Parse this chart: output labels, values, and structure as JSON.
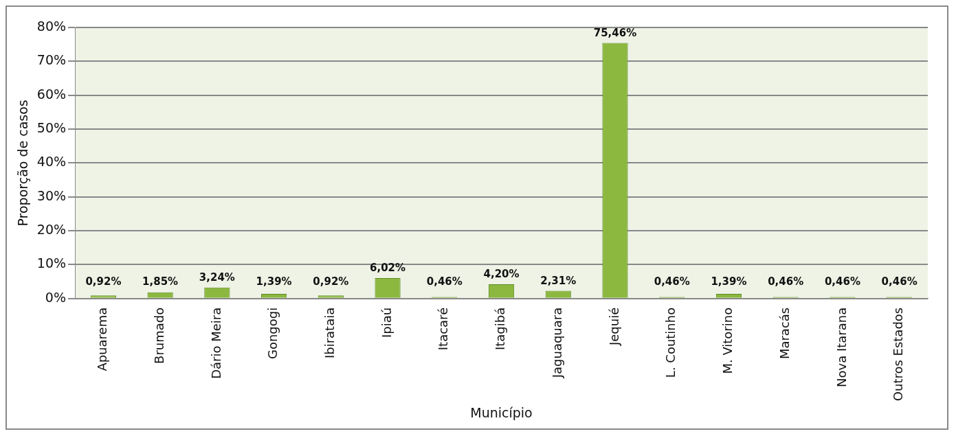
{
  "chart_data": {
    "type": "bar",
    "xlabel": "Município",
    "ylabel": "Proporção de casos",
    "categories": [
      "Apuarema",
      "Brumado",
      "Dário Meira",
      "Gongogi",
      "Ibirataia",
      "Ipiaú",
      "Itacaré",
      "Itagibá",
      "Jaguaquara",
      "Jequié",
      "L. Coutinho",
      "M. Vitorino",
      "Maracás",
      "Nova Itarana",
      "Outros Estados"
    ],
    "values": [
      0.92,
      1.85,
      3.24,
      1.39,
      0.92,
      6.02,
      0.46,
      4.2,
      2.31,
      75.46,
      0.46,
      1.39,
      0.46,
      0.46,
      0.46
    ],
    "value_labels": [
      "0,92%",
      "1,85%",
      "3,24%",
      "1,39%",
      "0,92%",
      "6,02%",
      "0,46%",
      "4,20%",
      "2,31%",
      "75,46%",
      "0,46%",
      "1,39%",
      "0,46%",
      "0,46%",
      "0,46%"
    ],
    "color": "#8cb840",
    "ylim": [
      0,
      80
    ],
    "yticks": [
      {
        "value": 0,
        "label": "0%"
      },
      {
        "value": 10,
        "label": "10%"
      },
      {
        "value": 20,
        "label": "20%"
      },
      {
        "value": 30,
        "label": "30%"
      },
      {
        "value": 40,
        "label": "40%"
      },
      {
        "value": 50,
        "label": "50%"
      },
      {
        "value": 60,
        "label": "60%"
      },
      {
        "value": 70,
        "label": "70%"
      },
      {
        "value": 80,
        "label": "80%"
      }
    ],
    "grid": "y",
    "legend": false
  }
}
